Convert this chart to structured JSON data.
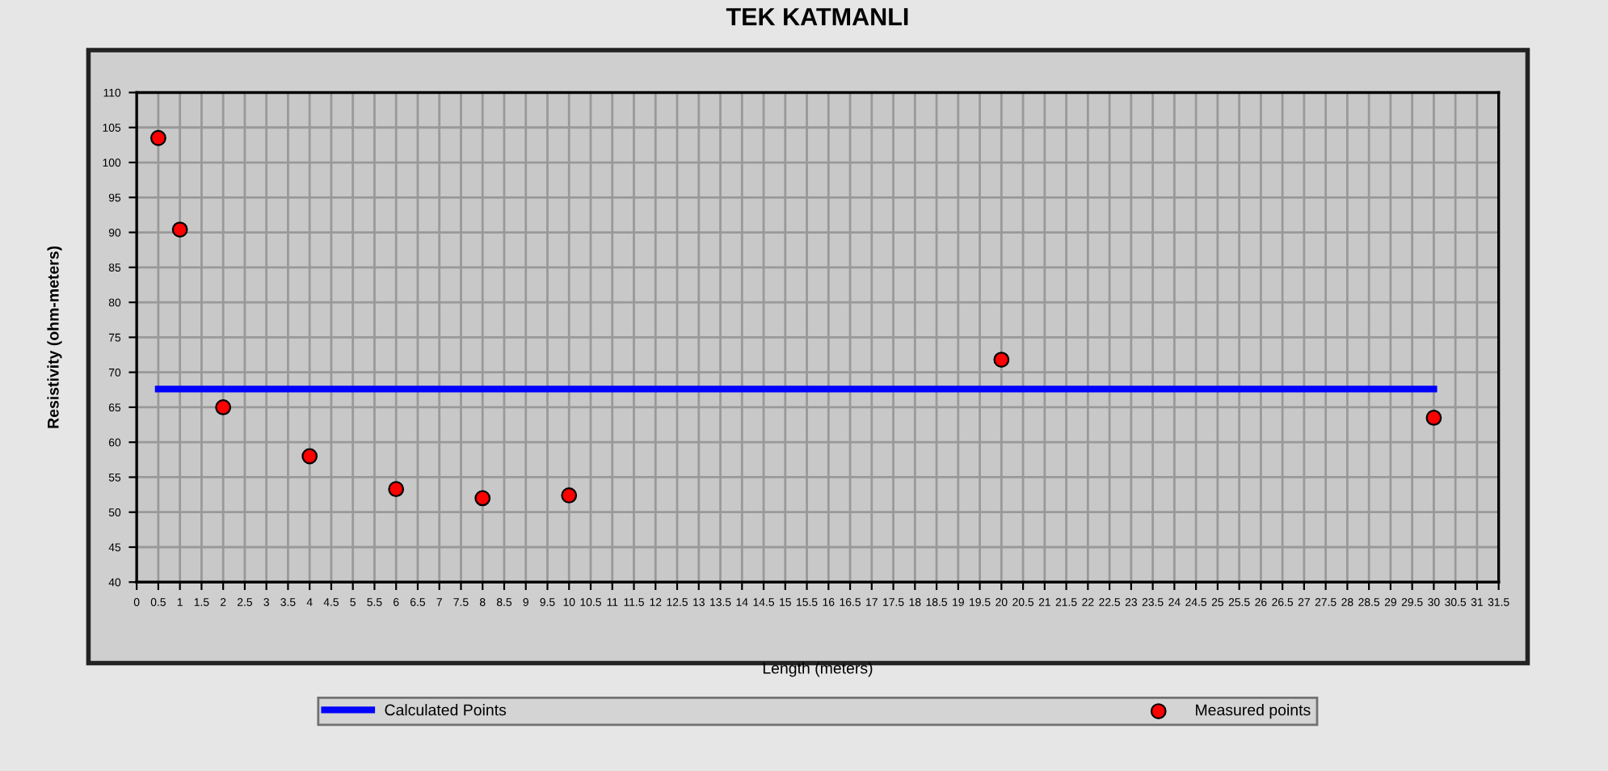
{
  "chart_data": {
    "type": "line",
    "title": "TEK KATMANLI",
    "xlabel": "Length (meters)",
    "ylabel": "Resistivity (ohm-meters)",
    "series": [
      {
        "name": "Calculated Points",
        "color": "#0000ff",
        "x": [
          0.5,
          30
        ],
        "values": [
          67.6,
          67.6
        ],
        "marker": "none",
        "line_style": "solid"
      },
      {
        "name": "Measured points",
        "type": "scatter",
        "color": "#ff0000",
        "x": [
          0.5,
          1,
          2,
          4,
          6,
          8,
          10,
          20,
          30
        ],
        "values": [
          103.5,
          90.4,
          65,
          58,
          53.3,
          52,
          52.4,
          71.8,
          63.5
        ],
        "marker": "circle"
      }
    ],
    "xlim": [
      0,
      31.5
    ],
    "xticks": [
      0,
      0.5,
      1,
      1.5,
      2,
      2.5,
      3,
      3.5,
      4,
      4.5,
      5,
      5.5,
      6,
      6.5,
      7,
      7.5,
      8,
      8.5,
      9,
      9.5,
      10,
      10.5,
      11,
      11.5,
      12,
      12.5,
      13,
      13.5,
      14,
      14.5,
      15,
      15.5,
      16,
      16.5,
      17,
      17.5,
      18,
      18.5,
      19,
      19.5,
      20,
      20.5,
      21,
      21.5,
      22,
      22.5,
      23,
      23.5,
      24,
      24.5,
      25,
      25.5,
      26,
      26.5,
      27,
      27.5,
      28,
      28.5,
      29,
      29.5,
      30,
      30.5,
      31,
      31.5
    ],
    "ylim": [
      40,
      110
    ],
    "yticks": [
      40,
      45,
      50,
      55,
      60,
      65,
      70,
      75,
      80,
      85,
      90,
      95,
      100,
      105,
      110
    ],
    "grid": true,
    "legend": "bottom"
  }
}
